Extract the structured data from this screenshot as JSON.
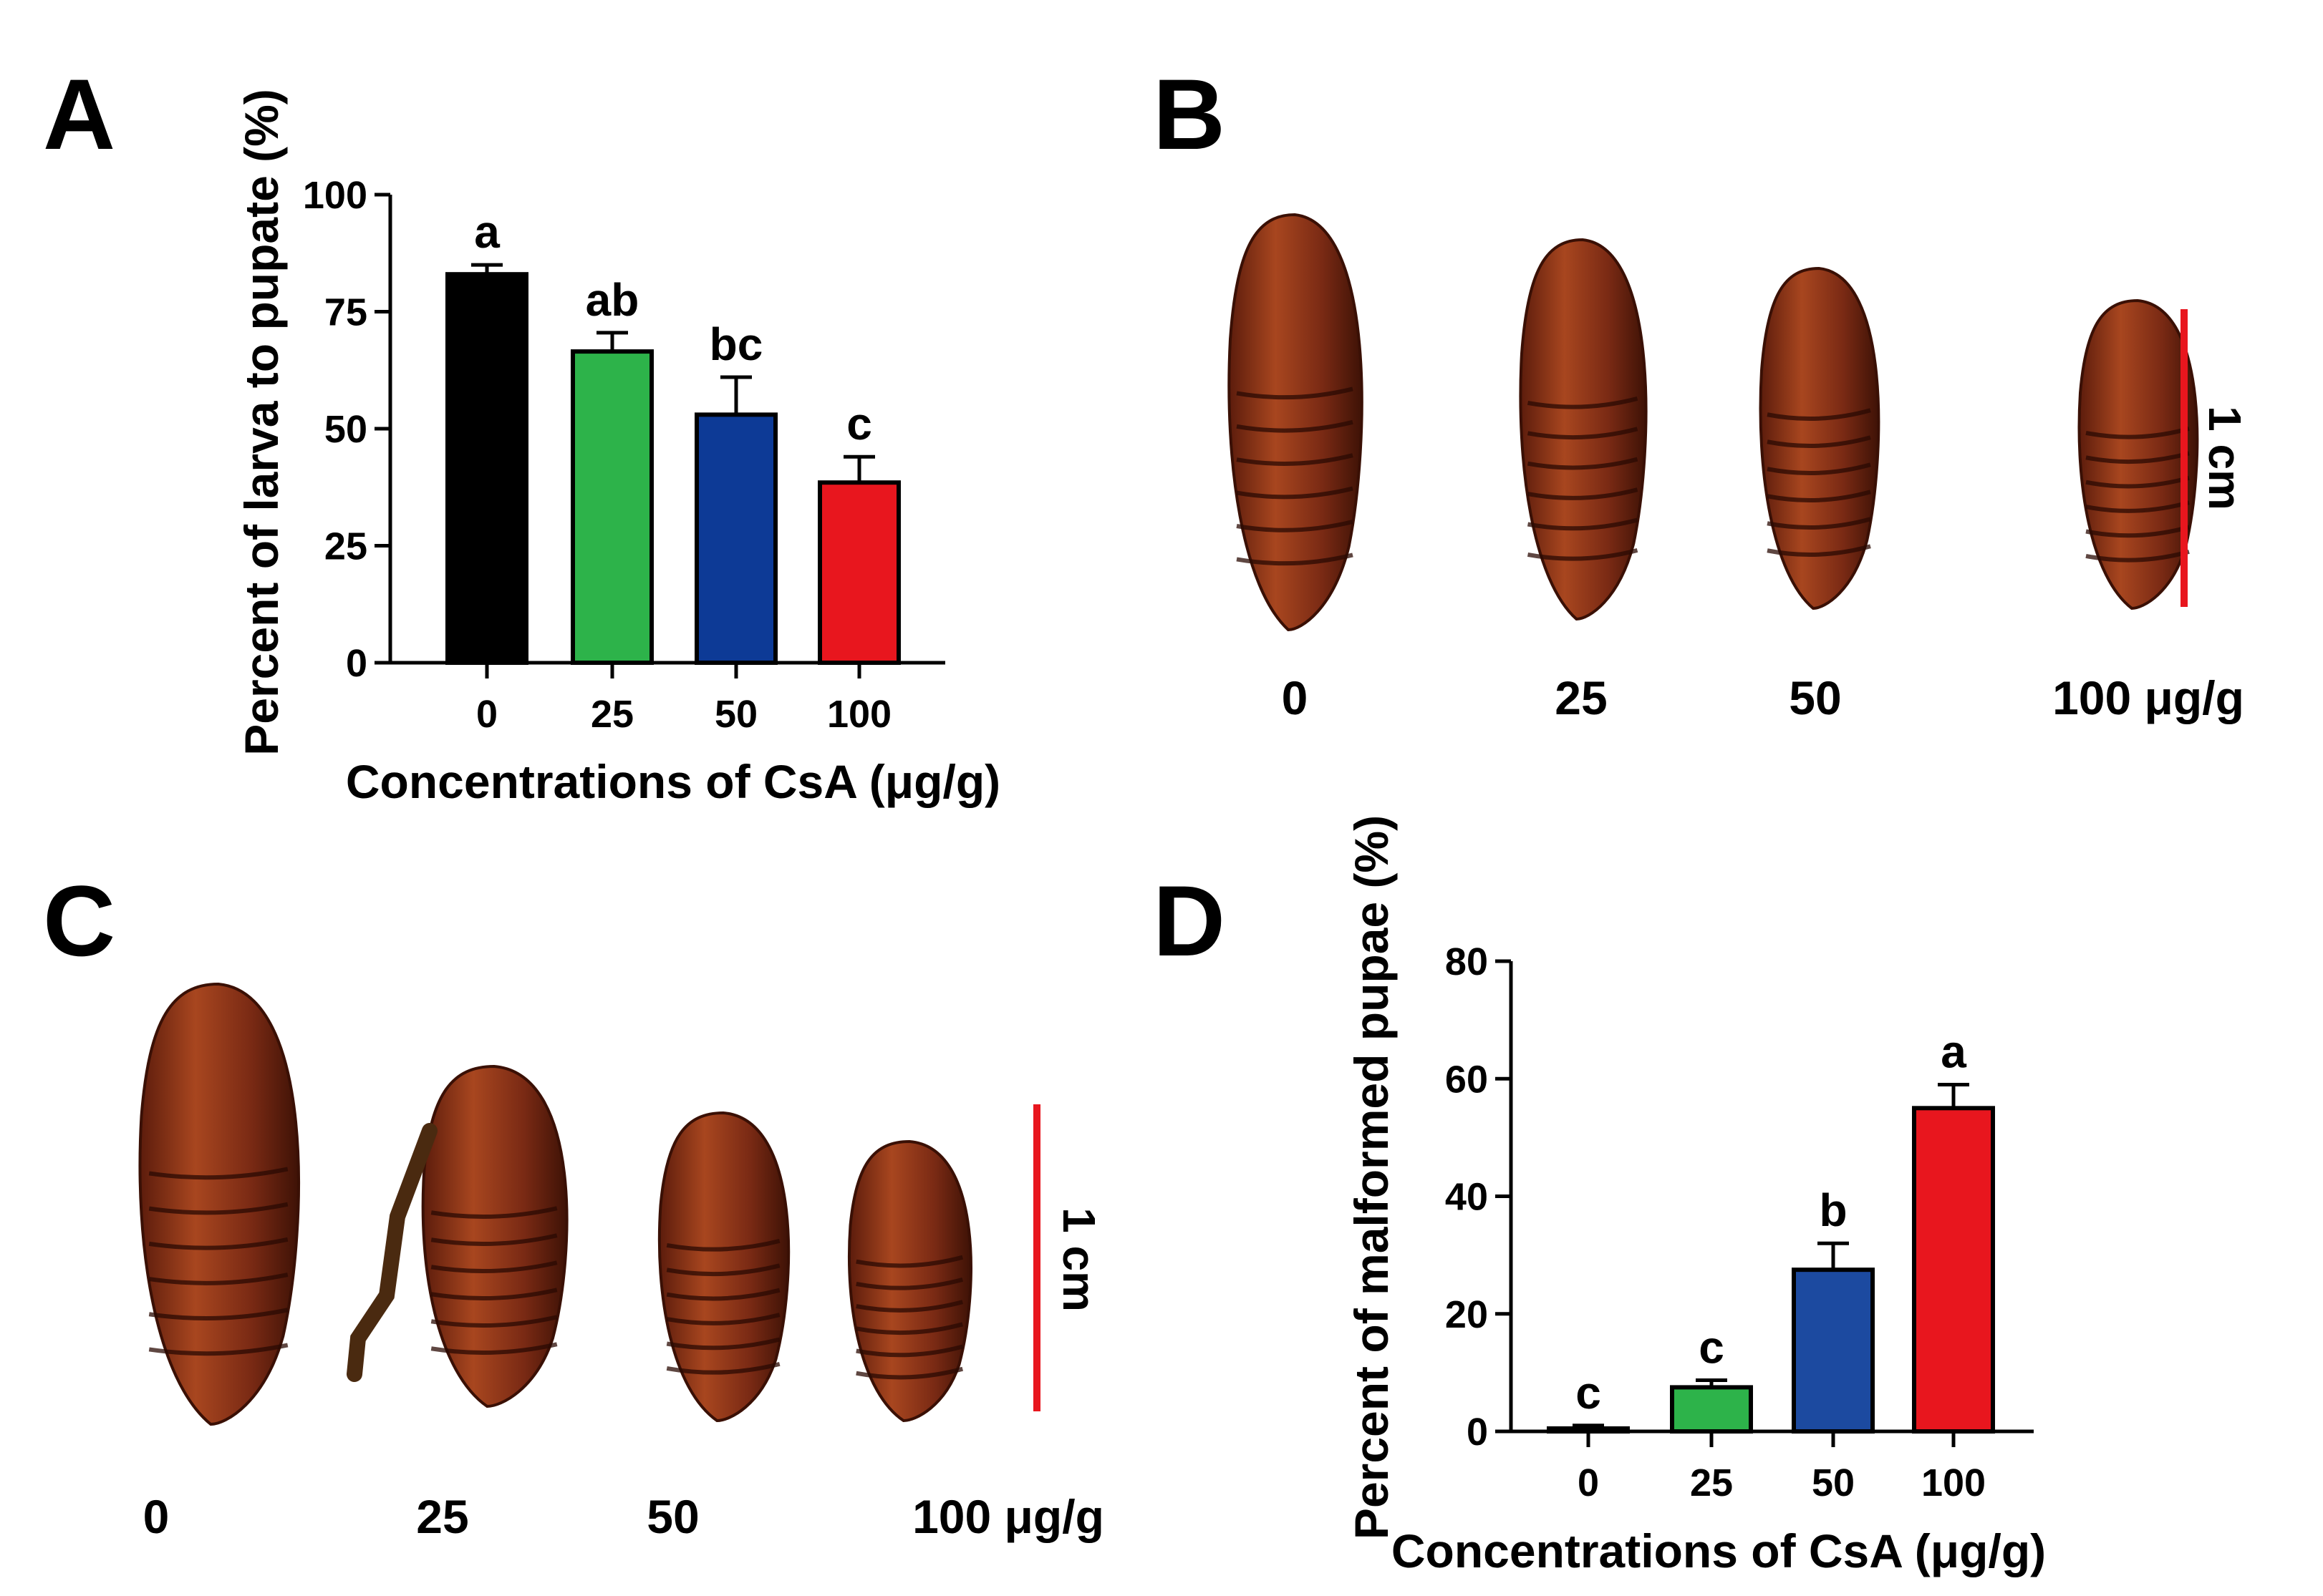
{
  "panels": {
    "a": "A",
    "b": "B",
    "c": "C",
    "d": "D"
  },
  "chart_data": [
    {
      "id": "A",
      "type": "bar",
      "categories": [
        "0",
        "25",
        "50",
        "100"
      ],
      "values": [
        83,
        66.5,
        53,
        38.5
      ],
      "errors": [
        2,
        4,
        8,
        5.5
      ],
      "significance": [
        "a",
        "ab",
        "bc",
        "c"
      ],
      "colors": [
        "#000000",
        "#2db34a",
        "#0d3a96",
        "#e8161e"
      ],
      "xlabel": "Concentrations of CsA (μg/g)",
      "ylabel": "Percent of larva to pupate (%)",
      "yticks": [
        "0",
        "25",
        "50",
        "75",
        "100"
      ],
      "ylim": [
        0,
        100
      ],
      "grid": false
    },
    {
      "id": "D",
      "type": "bar",
      "categories": [
        "0",
        "25",
        "50",
        "100"
      ],
      "values": [
        0.5,
        7.5,
        27.5,
        55
      ],
      "errors": [
        0.5,
        1.2,
        4.5,
        4
      ],
      "significance": [
        "c",
        "c",
        "b",
        "a"
      ],
      "colors": [
        "#ffffff",
        "#2db34a",
        "#1c4aa0",
        "#e8161e"
      ],
      "xlabel": "Concentrations of CsA (μg/g)",
      "ylabel": "Percent of malformed pupae (%)",
      "yticks": [
        "0",
        "20",
        "40",
        "60",
        "80"
      ],
      "ylim": [
        0,
        80
      ],
      "grid": false
    }
  ],
  "photos": {
    "b": {
      "labels": [
        "0",
        "25",
        "50",
        "100 μg/g"
      ],
      "scale_label": "1 cm",
      "scale_color": "#e8161e",
      "pupa_color": "#7a2a14"
    },
    "c": {
      "labels": [
        "0",
        "25",
        "50",
        "100 μg/g"
      ],
      "scale_label": "1 cm",
      "scale_color": "#e8161e",
      "pupa_color": "#7a2a14"
    }
  }
}
